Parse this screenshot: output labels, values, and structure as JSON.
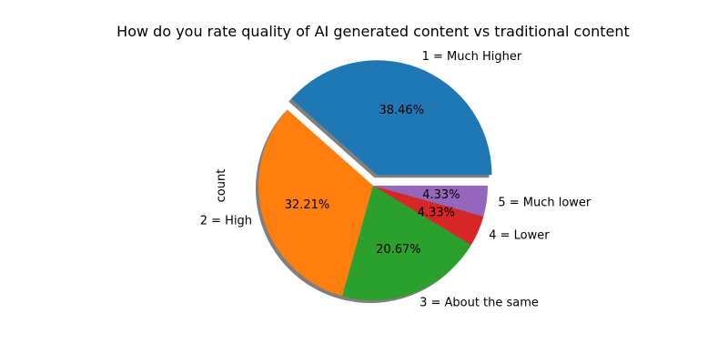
{
  "chart_data": {
    "type": "pie",
    "title": "How do you rate quality of AI generated content vs traditional content",
    "ylabel": "count",
    "labels": [
      "1 = Much Higher",
      "2 = High",
      "3 = About the same",
      "4 = Lower",
      "5 = Much lower"
    ],
    "values": [
      38.46,
      32.21,
      20.67,
      4.33,
      4.33
    ],
    "value_labels": [
      "38.46%",
      "32.21%",
      "20.67%",
      "4.33%",
      "4.33%"
    ],
    "colors": [
      "#1f77b4",
      "#ff7f0e",
      "#2ca02c",
      "#d62728",
      "#9467bd"
    ],
    "exploded": [
      true,
      false,
      false,
      false,
      false
    ],
    "shadow": true,
    "start_angle_deg": 0,
    "direction": "counterclockwise"
  }
}
